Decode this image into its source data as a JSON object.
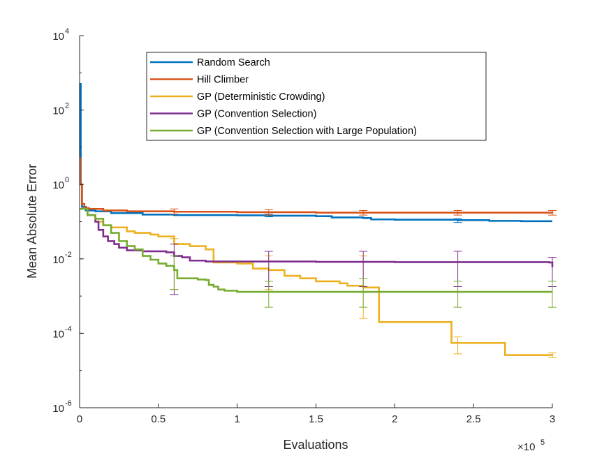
{
  "chart_data": {
    "type": "line",
    "title": "",
    "xlabel": "Evaluations",
    "ylabel": "Mean Absolute Error",
    "x_multiplier_label": "×10",
    "x_multiplier_exponent": "5",
    "xlim": [
      0,
      300000
    ],
    "ylim": [
      1e-06,
      10000
    ],
    "yscale": "log",
    "grid": false,
    "legend_position": "top-center",
    "x_ticks": [
      {
        "value": 0,
        "label": "0"
      },
      {
        "value": 50000,
        "label": "0.5"
      },
      {
        "value": 100000,
        "label": "1"
      },
      {
        "value": 150000,
        "label": "1.5"
      },
      {
        "value": 200000,
        "label": "2"
      },
      {
        "value": 250000,
        "label": "2.5"
      },
      {
        "value": 300000,
        "label": "3"
      }
    ],
    "y_ticks": [
      {
        "value": 1e-06,
        "base": "10",
        "exp": "-6"
      },
      {
        "value": 0.0001,
        "base": "10",
        "exp": "-4"
      },
      {
        "value": 0.01,
        "base": "10",
        "exp": "-2"
      },
      {
        "value": 1,
        "base": "10",
        "exp": "0"
      },
      {
        "value": 100,
        "base": "10",
        "exp": "2"
      },
      {
        "value": 10000,
        "base": "10",
        "exp": "4"
      }
    ],
    "series": [
      {
        "name": "Random Search",
        "color": "#0072BD",
        "points": [
          [
            0,
            5
          ],
          [
            300,
            500
          ],
          [
            700,
            1
          ],
          [
            1500,
            0.25
          ],
          [
            4000,
            0.2
          ],
          [
            10000,
            0.19
          ],
          [
            20000,
            0.17
          ],
          [
            40000,
            0.155
          ],
          [
            60000,
            0.15
          ],
          [
            100000,
            0.148
          ],
          [
            120000,
            0.145
          ],
          [
            150000,
            0.14
          ],
          [
            160000,
            0.13
          ],
          [
            180000,
            0.125
          ],
          [
            185000,
            0.115
          ],
          [
            200000,
            0.113
          ],
          [
            240000,
            0.11
          ],
          [
            260000,
            0.105
          ],
          [
            280000,
            0.103
          ],
          [
            300000,
            0.103
          ]
        ],
        "error_bars": [
          {
            "x": 120000,
            "low": 0.135,
            "high": 0.158
          },
          {
            "x": 240000,
            "low": 0.095,
            "high": 0.12
          }
        ]
      },
      {
        "name": "Hill Climber",
        "color": "#D95319",
        "points": [
          [
            0,
            5
          ],
          [
            500,
            1
          ],
          [
            1500,
            0.3
          ],
          [
            3000,
            0.23
          ],
          [
            6000,
            0.22
          ],
          [
            15000,
            0.2
          ],
          [
            30000,
            0.19
          ],
          [
            60000,
            0.185
          ],
          [
            100000,
            0.18
          ],
          [
            150000,
            0.175
          ],
          [
            180000,
            0.175
          ],
          [
            300000,
            0.17
          ]
        ],
        "error_bars": [
          {
            "x": 60000,
            "low": 0.16,
            "high": 0.22
          },
          {
            "x": 120000,
            "low": 0.15,
            "high": 0.21
          },
          {
            "x": 180000,
            "low": 0.15,
            "high": 0.2
          },
          {
            "x": 240000,
            "low": 0.15,
            "high": 0.2
          },
          {
            "x": 300000,
            "low": 0.15,
            "high": 0.2
          }
        ]
      },
      {
        "name": "GP (Deterministic Crowding)",
        "color": "#EDB120",
        "points": [
          [
            0,
            0.22
          ],
          [
            5000,
            0.15
          ],
          [
            10000,
            0.1
          ],
          [
            15000,
            0.08
          ],
          [
            20000,
            0.07
          ],
          [
            30000,
            0.055
          ],
          [
            35000,
            0.05
          ],
          [
            45000,
            0.045
          ],
          [
            50000,
            0.04
          ],
          [
            60000,
            0.025
          ],
          [
            70000,
            0.022
          ],
          [
            80000,
            0.018
          ],
          [
            85000,
            0.008
          ],
          [
            100000,
            0.0075
          ],
          [
            110000,
            0.0055
          ],
          [
            120000,
            0.005
          ],
          [
            130000,
            0.0035
          ],
          [
            140000,
            0.003
          ],
          [
            150000,
            0.0025
          ],
          [
            165000,
            0.0022
          ],
          [
            170000,
            0.0019
          ],
          [
            180000,
            0.0017
          ],
          [
            190000,
            0.0016
          ],
          [
            190000,
            0.0002
          ],
          [
            236000,
            0.00018
          ],
          [
            236000,
            5.5e-05
          ],
          [
            270000,
            5.2e-05
          ],
          [
            270000,
            2.6e-05
          ],
          [
            300000,
            2.5e-05
          ]
        ],
        "error_bars": [
          {
            "x": 60000,
            "low": 0.0015,
            "high": 0.035
          },
          {
            "x": 120000,
            "low": 0.0015,
            "high": 0.012
          },
          {
            "x": 180000,
            "low": 0.00025,
            "high": 0.012
          },
          {
            "x": 240000,
            "low": 2.8e-05,
            "high": 8e-05
          },
          {
            "x": 300000,
            "low": 2.2e-05,
            "high": 3e-05
          }
        ]
      },
      {
        "name": "GP (Convention Selection)",
        "color": "#7E2F8E",
        "points": [
          [
            0,
            0.22
          ],
          [
            5000,
            0.15
          ],
          [
            10000,
            0.1
          ],
          [
            12000,
            0.06
          ],
          [
            15000,
            0.04
          ],
          [
            18000,
            0.03
          ],
          [
            22000,
            0.025
          ],
          [
            25000,
            0.02
          ],
          [
            30000,
            0.017
          ],
          [
            40000,
            0.016
          ],
          [
            55000,
            0.015
          ],
          [
            60000,
            0.012
          ],
          [
            65000,
            0.011
          ],
          [
            70000,
            0.009
          ],
          [
            80000,
            0.0085
          ],
          [
            100000,
            0.0085
          ],
          [
            150000,
            0.0083
          ],
          [
            200000,
            0.0082
          ],
          [
            250000,
            0.0082
          ],
          [
            298000,
            0.008
          ],
          [
            300000,
            0.006
          ]
        ],
        "error_bars": [
          {
            "x": 60000,
            "low": 0.0011,
            "high": 0.025
          },
          {
            "x": 120000,
            "low": 0.0018,
            "high": 0.016
          },
          {
            "x": 180000,
            "low": 0.0018,
            "high": 0.016
          },
          {
            "x": 240000,
            "low": 0.0018,
            "high": 0.016
          },
          {
            "x": 300000,
            "low": 0.0018,
            "high": 0.011
          }
        ]
      },
      {
        "name": "GP (Convention Selection with Large Population)",
        "color": "#77AC30",
        "points": [
          [
            0,
            0.22
          ],
          [
            5000,
            0.15
          ],
          [
            10000,
            0.12
          ],
          [
            15000,
            0.08
          ],
          [
            20000,
            0.05
          ],
          [
            25000,
            0.03
          ],
          [
            30000,
            0.022
          ],
          [
            35000,
            0.018
          ],
          [
            40000,
            0.012
          ],
          [
            45000,
            0.0095
          ],
          [
            50000,
            0.0075
          ],
          [
            55000,
            0.0065
          ],
          [
            60000,
            0.005
          ],
          [
            62000,
            0.003
          ],
          [
            75000,
            0.0028
          ],
          [
            80000,
            0.0027
          ],
          [
            82000,
            0.002
          ],
          [
            85000,
            0.0018
          ],
          [
            88000,
            0.0015
          ],
          [
            92000,
            0.0014
          ],
          [
            100000,
            0.0013
          ],
          [
            150000,
            0.0013
          ],
          [
            200000,
            0.0013
          ],
          [
            250000,
            0.0013
          ],
          [
            300000,
            0.0013
          ]
        ],
        "error_bars": [
          {
            "x": 60000,
            "low": 0.0015,
            "high": 0.012
          },
          {
            "x": 120000,
            "low": 0.0005,
            "high": 0.0025
          },
          {
            "x": 180000,
            "low": 0.0005,
            "high": 0.003
          },
          {
            "x": 240000,
            "low": 0.0005,
            "high": 0.0025
          },
          {
            "x": 300000,
            "low": 0.0005,
            "high": 0.0025
          }
        ]
      }
    ]
  }
}
